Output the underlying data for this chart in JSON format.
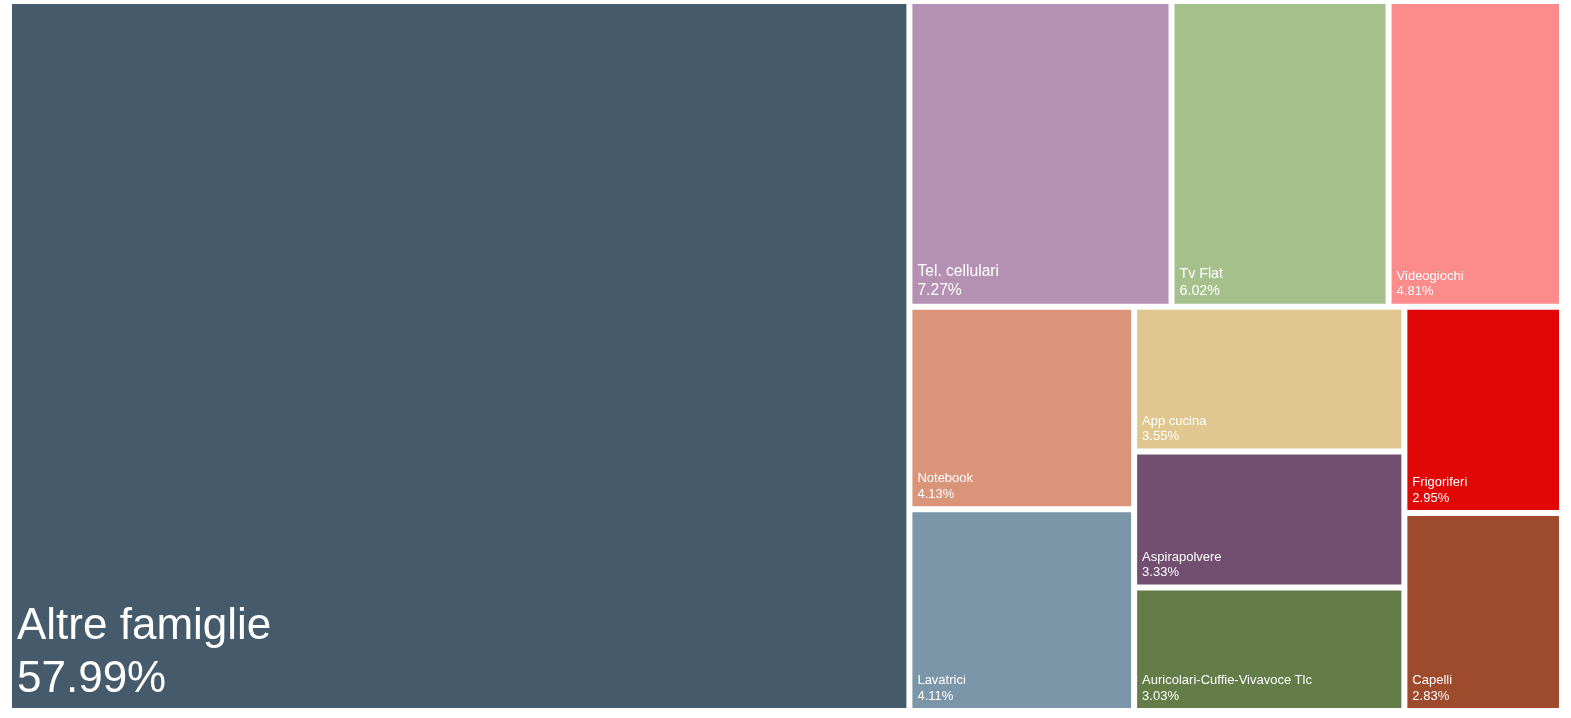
{
  "chart_data": {
    "type": "other",
    "categories": [
      "Altre famiglie",
      "Tel. cellulari",
      "Tv Flat",
      "Videogiochi",
      "Lavatrici",
      "App cucina",
      "Notebook",
      "Aspirapolvere",
      "Auricolari-Cuffie-Vivavoce Tlc",
      "Frigoriferi",
      "Capelli"
    ],
    "values": [
      57.99,
      7.27,
      6.02,
      4.81,
      4.11,
      3.55,
      4.13,
      3.33,
      3.03,
      2.95,
      2.83
    ],
    "value_labels": [
      "57.99%",
      "7.27%",
      "6.02%",
      "4.81%",
      "4.11%",
      "3.55%",
      "4.13%",
      "3.33%",
      "3.03%",
      "2.95%",
      "2.83%"
    ],
    "colors": [
      "#455a6a",
      "#b490b3",
      "#a6c08c",
      "#fc8b8b",
      "#7b96a8",
      "#dfc78f",
      "#da947a",
      "#724e70",
      "#647c47",
      "#e20707",
      "#9e4a2c"
    ]
  }
}
